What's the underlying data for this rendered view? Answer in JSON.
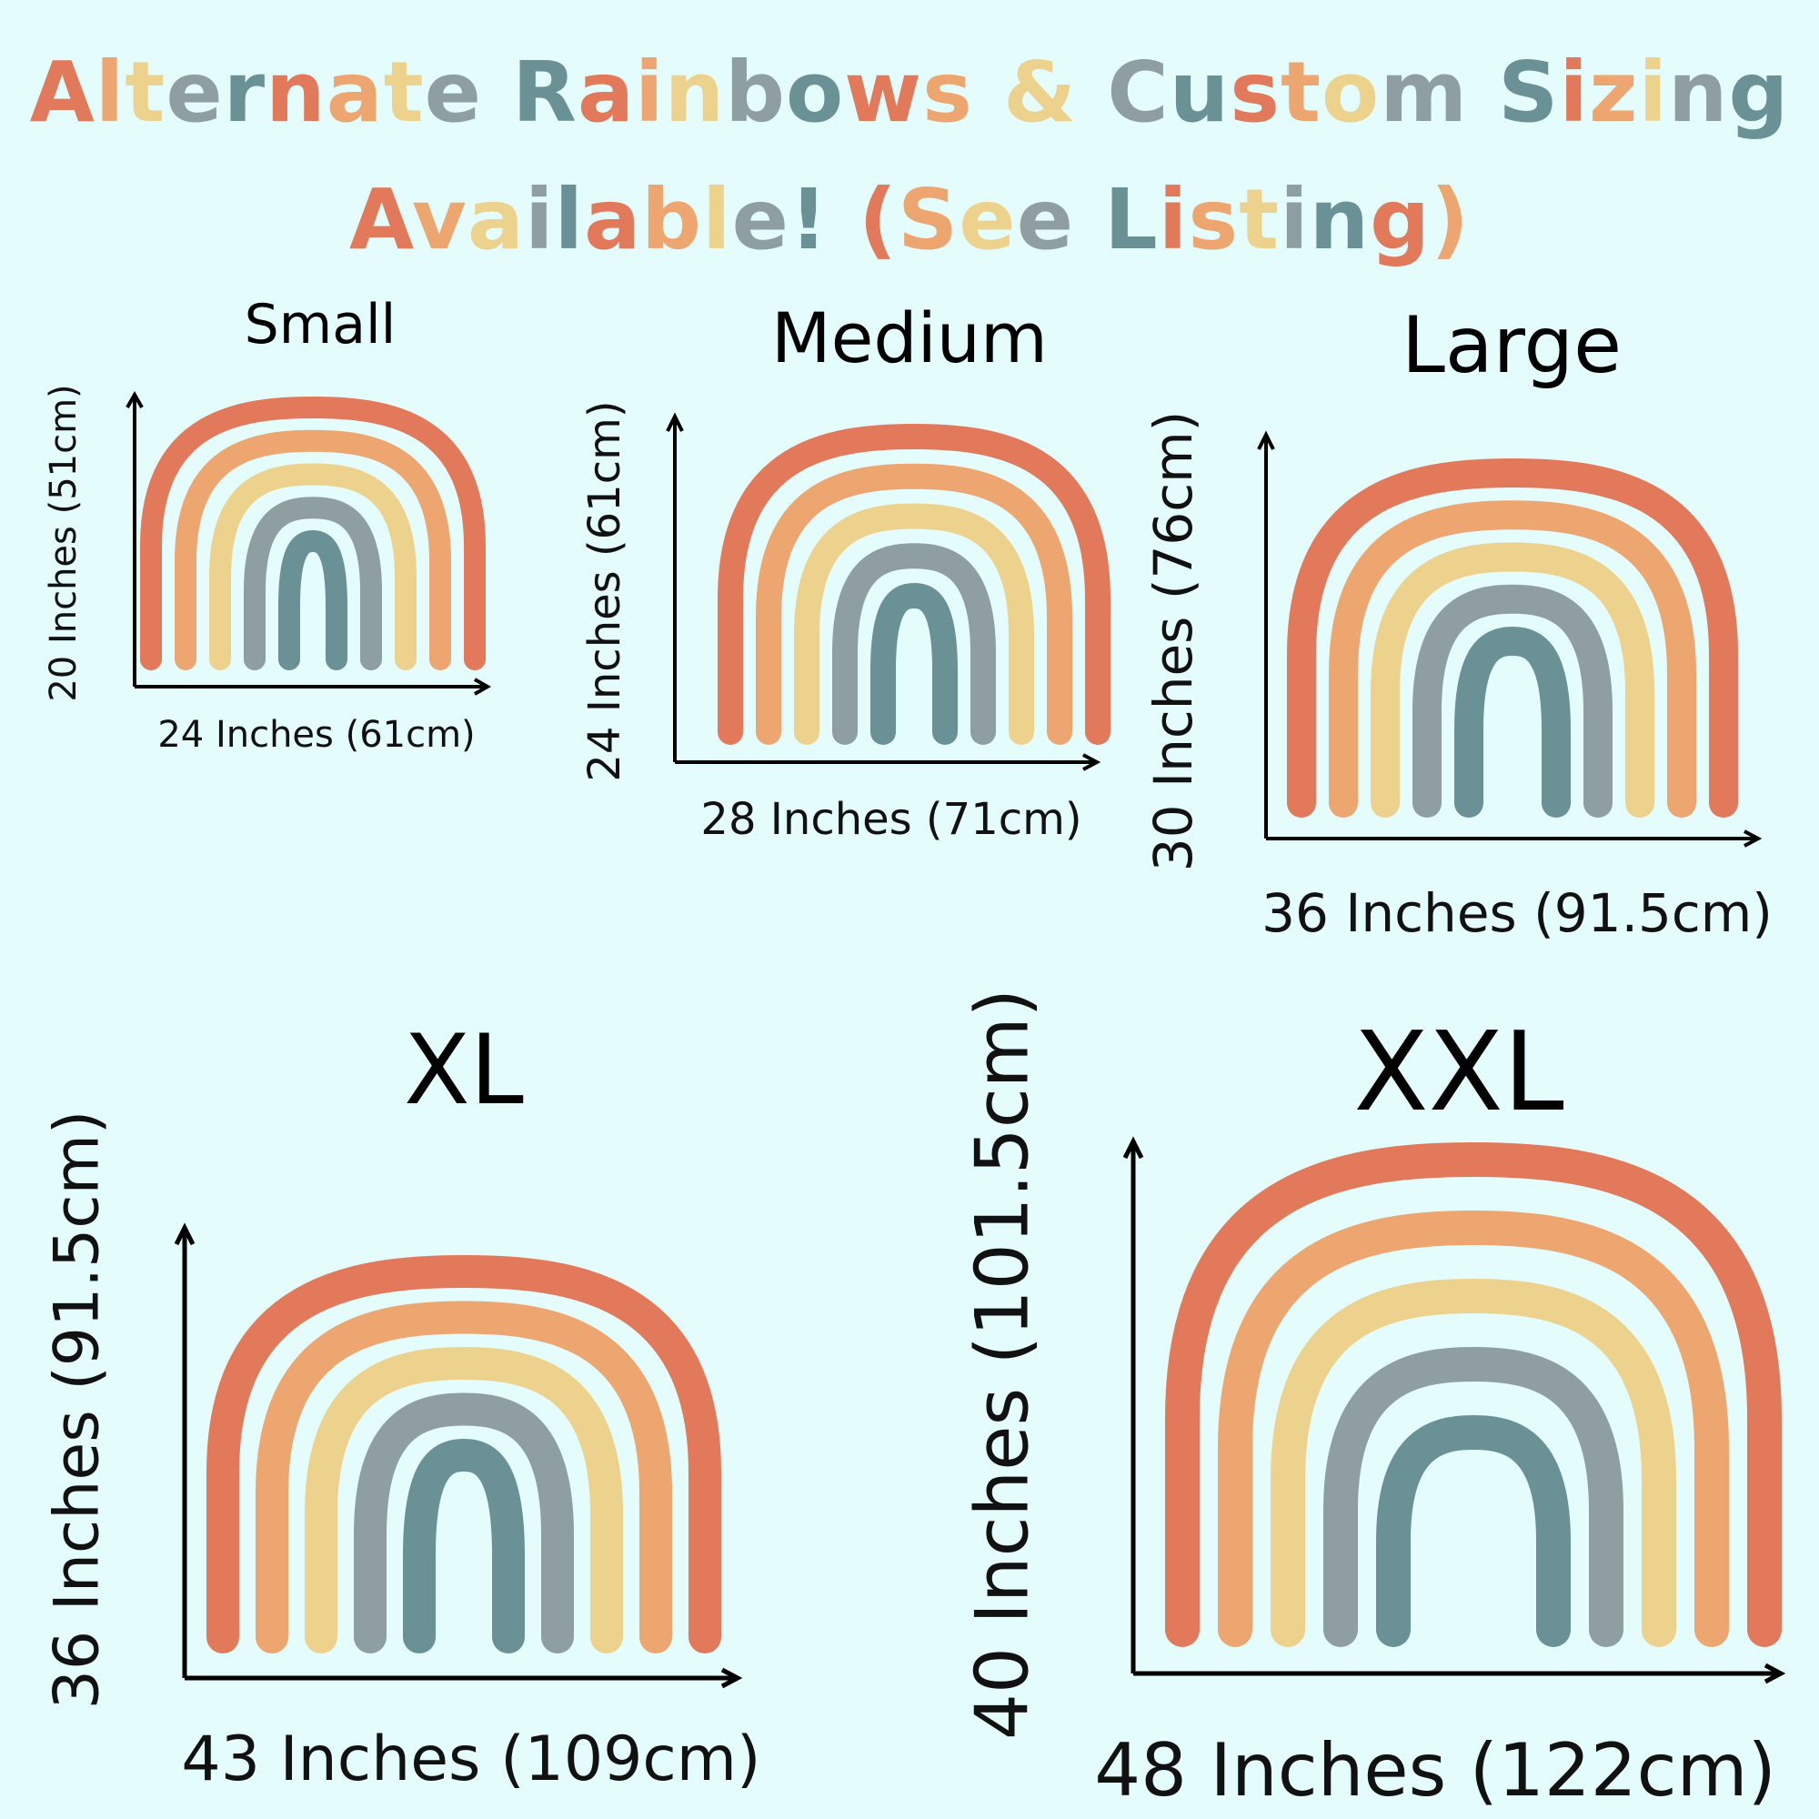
{
  "headline": {
    "line1": "Alternate Rainbows & Custom Sizing",
    "line2": "Available! (See Listing)"
  },
  "palette": [
    "#e2795a",
    "#eda670",
    "#ecd28c",
    "#8f9ea1",
    "#6a9196"
  ],
  "sizes": [
    {
      "label": "Small",
      "width": "24 Inches (61cm)",
      "height": "20 Inches (51cm)"
    },
    {
      "label": "Medium",
      "width": "28 Inches (71cm)",
      "height": "24 Inches (61cm)"
    },
    {
      "label": "Large",
      "width": "36 Inches (91.5cm)",
      "height": "30 Inches (76cm)"
    },
    {
      "label": "XL",
      "width": "43 Inches (109cm)",
      "height": "36 Inches (91.5cm)"
    },
    {
      "label": "XXL",
      "width": "48 Inches (122cm)",
      "height": "40 Inches (101.5cm)"
    }
  ]
}
